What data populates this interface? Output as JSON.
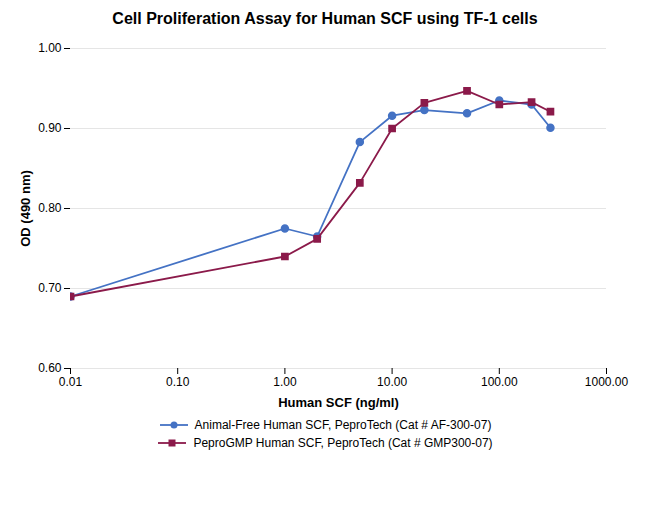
{
  "chart_data": {
    "type": "line",
    "title": "Cell Proliferation Assay for Human SCF using TF-1 cells",
    "xlabel": "Human SCF (ng/ml)",
    "ylabel": "OD (490 nm)",
    "log": "x",
    "x": [
      0.01,
      1.0,
      2.0,
      5.0,
      10.0,
      20.0,
      50.0,
      100.0,
      200.0,
      300.0
    ],
    "series": [
      {
        "name": "Animal-Free Human SCF, PeproTech (Cat # AF-300-07)",
        "color": "#4472C4",
        "marker": "circle",
        "values": [
          0.69,
          0.775,
          0.765,
          0.883,
          0.916,
          0.923,
          0.919,
          0.935,
          0.93,
          0.901
        ]
      },
      {
        "name": "PeproGMP Human SCF, PeproTech (Cat # GMP300-07)",
        "color": "#8B1A4A",
        "marker": "square",
        "values": [
          0.69,
          0.74,
          0.762,
          0.832,
          0.9,
          0.932,
          0.947,
          0.93,
          0.933,
          0.921
        ]
      }
    ],
    "xlim": [
      0.01,
      1000.0
    ],
    "ylim": [
      0.6,
      1.0
    ],
    "xticks": [
      0.01,
      {
        "value": 0.1,
        "label": "0.10"
      },
      {
        "value": 1,
        "label": "1.00"
      },
      {
        "value": 10,
        "label": "10.00"
      },
      {
        "value": 100,
        "label": "100.00"
      },
      {
        "value": 1000,
        "label": "1000.00"
      }
    ],
    "yticks": [
      {
        "value": 0.6,
        "label": "0.60"
      },
      {
        "value": 0.7,
        "label": "0.70"
      },
      {
        "value": 0.8,
        "label": "0.80"
      },
      {
        "value": 0.9,
        "label": "0.90"
      },
      {
        "value": 1.0,
        "label": "1.00"
      }
    ],
    "grid": "y",
    "legend": "bottom"
  }
}
